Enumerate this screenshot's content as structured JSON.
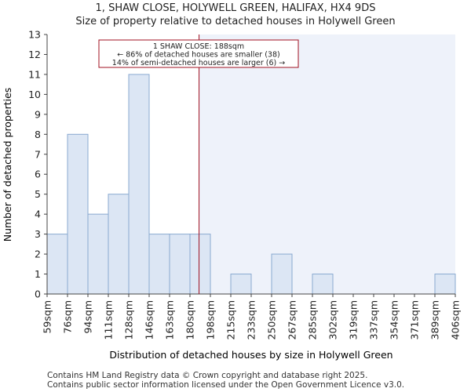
{
  "title_line1": "1, SHAW CLOSE, HOLYWELL GREEN, HALIFAX, HX4 9DS",
  "title_line2": "Size of property relative to detached houses in Holywell Green",
  "footer_line1": "Contains HM Land Registry data © Crown copyright and database right 2025.",
  "footer_line2": "Contains public sector information licensed under the Open Government Licence v3.0.",
  "chart_data": {
    "type": "bar",
    "xlabel": "Distribution of detached houses by size in Holywell Green",
    "ylabel": "Number of detached properties",
    "ylim": [
      0,
      13
    ],
    "yticks": [
      0,
      1,
      2,
      3,
      4,
      5,
      6,
      7,
      8,
      9,
      10,
      11,
      12,
      13
    ],
    "bin_edges": [
      "59sqm",
      "76sqm",
      "94sqm",
      "111sqm",
      "128sqm",
      "146sqm",
      "163sqm",
      "180sqm",
      "198sqm",
      "215sqm",
      "233sqm",
      "250sqm",
      "267sqm",
      "285sqm",
      "302sqm",
      "319sqm",
      "337sqm",
      "354sqm",
      "371sqm",
      "389sqm",
      "406sqm"
    ],
    "values": [
      3,
      8,
      4,
      5,
      11,
      3,
      3,
      3,
      0,
      1,
      0,
      2,
      0,
      1,
      0,
      0,
      0,
      0,
      0,
      1
    ],
    "marker": {
      "value_sqm": 188,
      "label_lines": [
        "1 SHAW CLOSE: 188sqm",
        "← 86% of detached houses are smaller (38)",
        "14% of semi-detached houses are larger (6) →"
      ]
    },
    "colors": {
      "bar_fill": "#dce6f4",
      "bar_stroke": "#8aaad0",
      "shade": "#eef2fa",
      "marker": "#a01020"
    }
  }
}
